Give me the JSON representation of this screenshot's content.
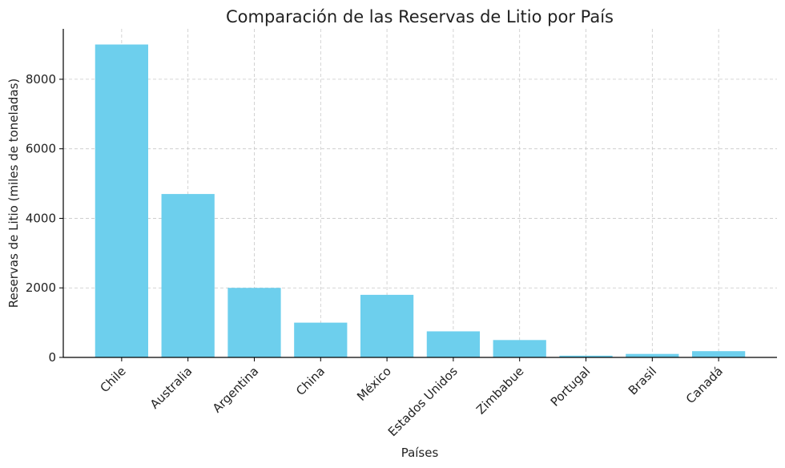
{
  "chart_data": {
    "type": "bar",
    "title": "Comparación de las Reservas de Litio por País",
    "x_label": "Países",
    "y_label": "Reservas de Litio (miles de toneladas)",
    "categories": [
      "Chile",
      "Australia",
      "Argentina",
      "China",
      "México",
      "Estados Unidos",
      "Zimbabue",
      "Portugal",
      "Brasil",
      "Canadá"
    ],
    "values": [
      9000,
      4700,
      2000,
      1000,
      1800,
      750,
      500,
      50,
      100,
      180
    ],
    "color": "#6dcfed",
    "ylim": [
      0,
      9450
    ],
    "yticks": [
      0,
      2000,
      4000,
      6000,
      8000
    ],
    "grid": true
  }
}
